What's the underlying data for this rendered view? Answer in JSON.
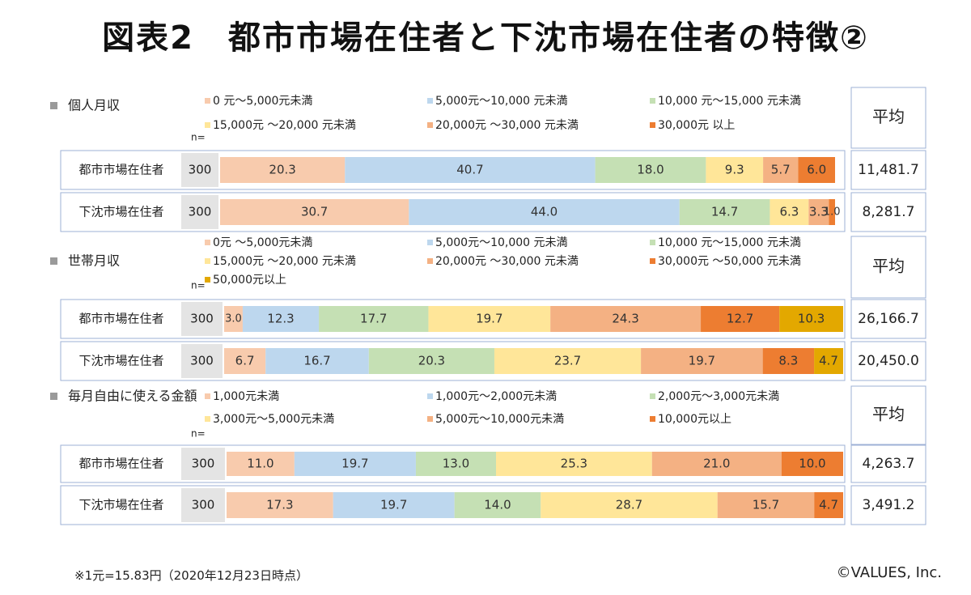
{
  "title": "図表2　都市市場在住者と下沈市場在住者の特徴②",
  "colors": {
    "peach": "#f8cbad",
    "blue": "#bdd7ee",
    "green": "#c5e0b4",
    "yellow": "#ffe699",
    "orange": "#f4b183",
    "deep_orange": "#ed7d31",
    "gold": "#e3a800",
    "n_box": "#e4e4e4",
    "frame": "#9db0d6",
    "marker": "#9a9a9a"
  },
  "footnote": "※1元=15.83円（2020年12月23日時点）",
  "credit": "©VALUES, Inc.",
  "chart_data": [
    {
      "type": "bar",
      "orientation": "horizontal-stacked-100",
      "title": "個人月収",
      "n_label": "n=",
      "avg_header": "平均",
      "legend": [
        {
          "label": "0 元～5,000元未満",
          "color": "peach"
        },
        {
          "label": "5,000元～10,000 元未満",
          "color": "blue"
        },
        {
          "label": "10,000 元～15,000 元未満",
          "color": "green"
        },
        {
          "label": "15,000元 ～20,000 元未満",
          "color": "yellow"
        },
        {
          "label": "20,000元 ～30,000 元未満",
          "color": "orange"
        },
        {
          "label": "30,000元 以上",
          "color": "deep_orange"
        }
      ],
      "rows": [
        {
          "label": "都市市場在住者",
          "n": "300",
          "values": [
            20.3,
            40.7,
            18.0,
            9.3,
            5.7,
            6.0
          ],
          "value_labels": [
            "20.3",
            "40.7",
            "18.0",
            "9.3",
            "5.7",
            "6.0"
          ],
          "average": "11,481.7"
        },
        {
          "label": "下沈市場在住者",
          "n": "300",
          "values": [
            30.7,
            44.0,
            14.7,
            6.3,
            3.3,
            1.0
          ],
          "value_labels": [
            "30.7",
            "44.0",
            "14.7",
            "6.3",
            "3.3",
            "1.0"
          ],
          "average": "8,281.7"
        }
      ]
    },
    {
      "type": "bar",
      "orientation": "horizontal-stacked-100",
      "title": "世帯月収",
      "n_label": "n=",
      "avg_header": "平均",
      "legend": [
        {
          "label": "0元 ～5,000元未満",
          "color": "peach"
        },
        {
          "label": "5,000元～10,000 元未満",
          "color": "blue"
        },
        {
          "label": "10,000 元～15,000 元未満",
          "color": "green"
        },
        {
          "label": "15,000元 ～20,000 元未満",
          "color": "yellow"
        },
        {
          "label": "20,000元 ～30,000 元未満",
          "color": "orange"
        },
        {
          "label": "30,000元 ～50,000 元未満",
          "color": "deep_orange"
        },
        {
          "label": "50,000元以上",
          "color": "gold"
        }
      ],
      "rows": [
        {
          "label": "都市市場在住者",
          "n": "300",
          "values": [
            3.0,
            12.3,
            17.7,
            19.7,
            24.3,
            12.7,
            10.3
          ],
          "value_labels": [
            "3.0",
            "12.3",
            "17.7",
            "19.7",
            "24.3",
            "12.7",
            "10.3"
          ],
          "average": "26,166.7"
        },
        {
          "label": "下沈市場在住者",
          "n": "300",
          "values": [
            6.7,
            16.7,
            20.3,
            23.7,
            19.7,
            8.3,
            4.7
          ],
          "value_labels": [
            "6.7",
            "16.7",
            "20.3",
            "23.7",
            "19.7",
            "8.3",
            "4.7"
          ],
          "average": "20,450.0"
        }
      ]
    },
    {
      "type": "bar",
      "orientation": "horizontal-stacked-100",
      "title": "毎月自由に使える金額",
      "n_label": "n=",
      "avg_header": "平均",
      "legend": [
        {
          "label": "1,000元未満",
          "color": "peach"
        },
        {
          "label": "1,000元～2,000元未満",
          "color": "blue"
        },
        {
          "label": "2,000元～3,000元未満",
          "color": "green"
        },
        {
          "label": "3,000元～5,000元未満",
          "color": "yellow"
        },
        {
          "label": "5,000元～10,000元未満",
          "color": "orange"
        },
        {
          "label": "10,000元以上",
          "color": "deep_orange"
        }
      ],
      "rows": [
        {
          "label": "都市市場在住者",
          "n": "300",
          "values": [
            11.0,
            19.7,
            13.0,
            25.3,
            21.0,
            10.0
          ],
          "value_labels": [
            "11.0",
            "19.7",
            "13.0",
            "25.3",
            "21.0",
            "10.0"
          ],
          "average": "4,263.7"
        },
        {
          "label": "下沈市場在住者",
          "n": "300",
          "values": [
            17.3,
            19.7,
            14.0,
            28.7,
            15.7,
            4.7
          ],
          "value_labels": [
            "17.3",
            "19.7",
            "14.0",
            "28.7",
            "15.7",
            "4.7"
          ],
          "average": "3,491.2"
        }
      ]
    }
  ]
}
